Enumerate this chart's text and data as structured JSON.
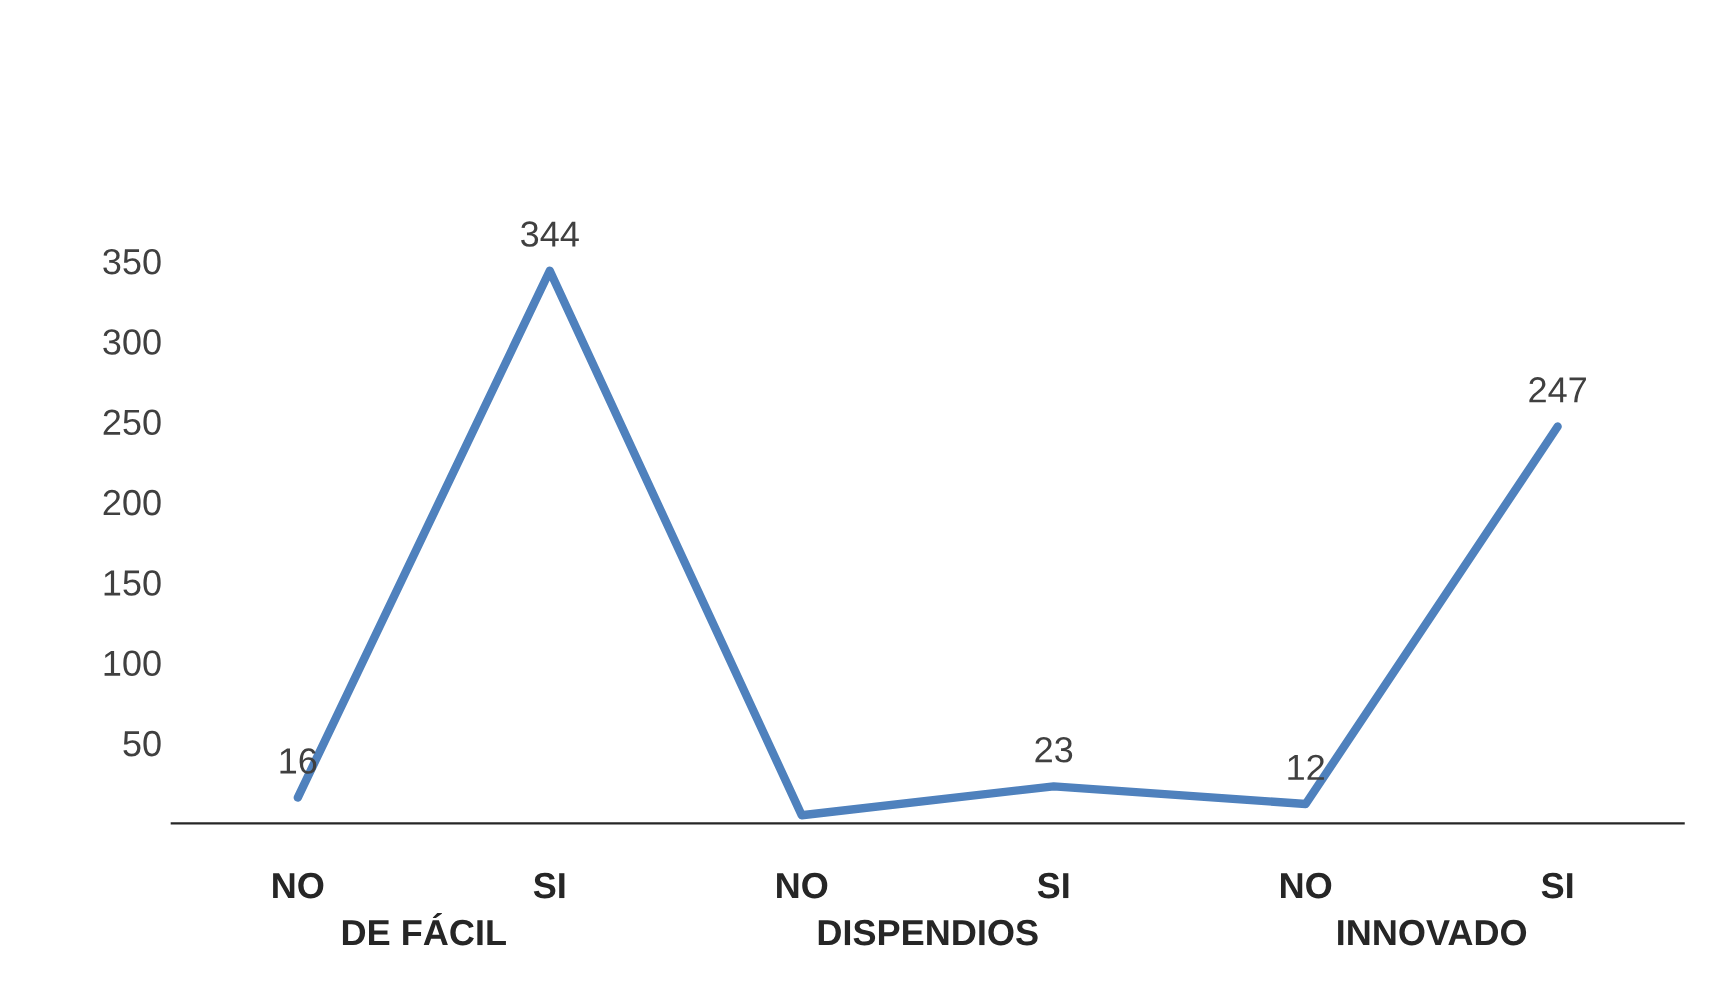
{
  "chart_data": {
    "type": "line",
    "categories": [
      "NO",
      "SI",
      "NO",
      "SI",
      "NO",
      "SI"
    ],
    "series": [
      {
        "color": "#4f81bd",
        "values": [
          16,
          344,
          5,
          23,
          12,
          247
        ],
        "value_labels": [
          "16",
          "344",
          null,
          "23",
          "12",
          "247"
        ]
      }
    ],
    "ylim": [
      0,
      350
    ],
    "yticks": [
      50,
      100,
      150,
      200,
      250,
      300,
      350
    ],
    "grid": false,
    "marker": "none",
    "line_style": "solid",
    "annotations": [
      "DE FÁCIL",
      "DISPENDIOS",
      "INNOVADO"
    ]
  }
}
